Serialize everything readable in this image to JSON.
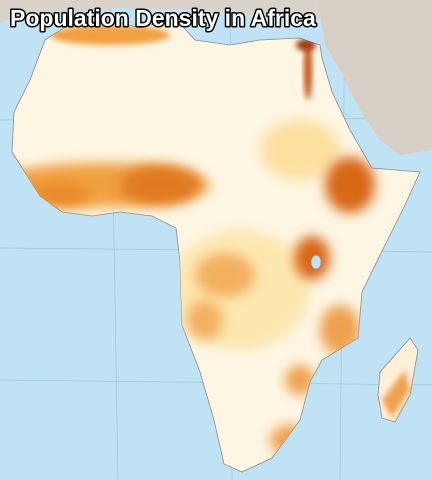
{
  "title": "Population Density in Africa"
}
